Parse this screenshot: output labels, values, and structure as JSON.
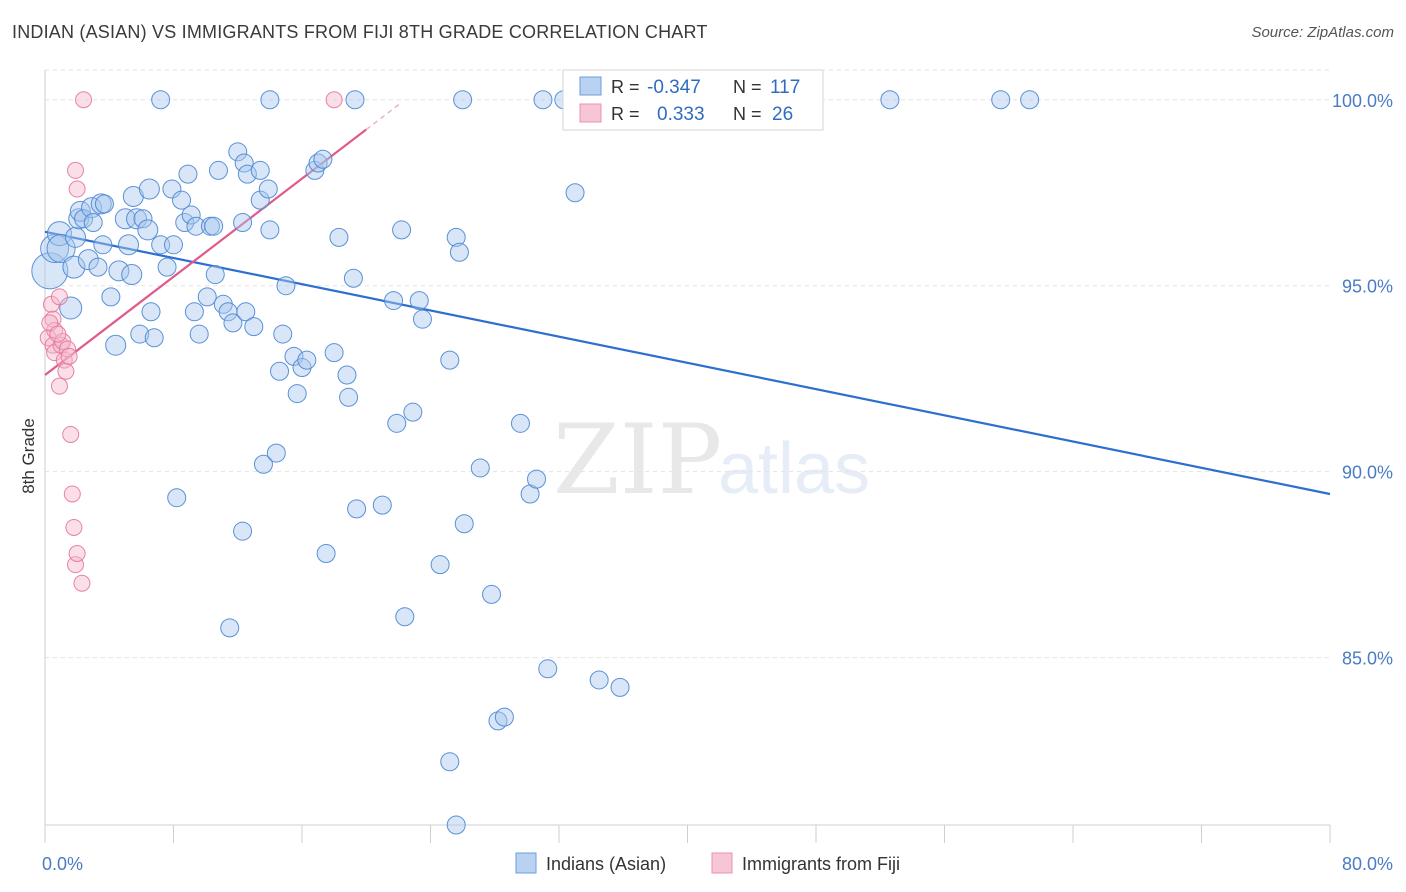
{
  "title": "INDIAN (ASIAN) VS IMMIGRANTS FROM FIJI 8TH GRADE CORRELATION CHART",
  "source": "Source: ZipAtlas.com",
  "watermark": {
    "zip": "ZIP",
    "atlas": "atlas"
  },
  "colors": {
    "blue": "#4a86d4",
    "blue_fill": "#a9c8ee",
    "pink": "#e7769d",
    "pink_fill": "#f5b8cc",
    "axis_text": "#4a7cc4",
    "grid": "#e3e3e3"
  },
  "legend_top": {
    "rows": [
      {
        "r_label": "R =",
        "r_value": "-0.347",
        "n_label": "N =",
        "n_value": "117"
      },
      {
        "r_label": "R =",
        "r_value": "0.333",
        "n_label": "N =",
        "n_value": "26"
      }
    ]
  },
  "legend_bottom": {
    "series1": "Indians (Asian)",
    "series2": "Immigrants from Fiji"
  },
  "chart_data": {
    "type": "scatter",
    "xlabel": "",
    "ylabel": "8th Grade",
    "xlim": [
      0,
      80
    ],
    "ylim": [
      80.5,
      100.8
    ],
    "x_tick_labels": {
      "0": "0.0%",
      "80": "80.0%"
    },
    "y_ticks": [
      85,
      90,
      95,
      100
    ],
    "y_tick_labels": [
      "85.0%",
      "90.0%",
      "95.0%",
      "100.0%"
    ],
    "grid": true,
    "series": [
      {
        "name": "Indians (Asian)",
        "color": "#4a86d4",
        "trend": {
          "x0": 0,
          "y0": 96.45,
          "x1": 80,
          "y1": 89.4
        },
        "points": [
          [
            0.3,
            95.4,
            18
          ],
          [
            0.6,
            96.0,
            14
          ],
          [
            0.9,
            96.4,
            12
          ],
          [
            1.0,
            96.0,
            14
          ],
          [
            1.6,
            94.4,
            11
          ],
          [
            1.8,
            95.5,
            11
          ],
          [
            1.9,
            96.3,
            10
          ],
          [
            2.1,
            96.8,
            10
          ],
          [
            2.2,
            97.0,
            10
          ],
          [
            2.4,
            96.8,
            9
          ],
          [
            2.7,
            95.7,
            10
          ],
          [
            2.9,
            97.1,
            10
          ],
          [
            3.0,
            96.7,
            9
          ],
          [
            3.3,
            95.5,
            9
          ],
          [
            3.5,
            97.2,
            10
          ],
          [
            3.7,
            97.2,
            9
          ],
          [
            4.1,
            94.7,
            9
          ],
          [
            4.4,
            93.4,
            10
          ],
          [
            4.6,
            95.4,
            10
          ],
          [
            5.0,
            96.8,
            10
          ],
          [
            5.2,
            96.1,
            10
          ],
          [
            5.4,
            95.3,
            10
          ],
          [
            5.5,
            97.4,
            10
          ],
          [
            5.7,
            96.8,
            10
          ],
          [
            5.9,
            93.7,
            9
          ],
          [
            6.1,
            96.8,
            9
          ],
          [
            6.4,
            96.5,
            10
          ],
          [
            6.5,
            97.6,
            10
          ],
          [
            6.8,
            93.6,
            9
          ],
          [
            7.2,
            96.1,
            9
          ],
          [
            7.6,
            95.5,
            9
          ],
          [
            7.9,
            97.6,
            9
          ],
          [
            8.0,
            96.1,
            9
          ],
          [
            8.5,
            97.3,
            9
          ],
          [
            8.7,
            96.7,
            9
          ],
          [
            8.9,
            98.0,
            9
          ],
          [
            9.1,
            96.9,
            9
          ],
          [
            9.3,
            94.3,
            9
          ],
          [
            9.4,
            96.6,
            9
          ],
          [
            9.6,
            93.7,
            9
          ],
          [
            10.1,
            94.7,
            9
          ],
          [
            10.3,
            96.6,
            9
          ],
          [
            10.5,
            96.6,
            9
          ],
          [
            10.6,
            95.3,
            9
          ],
          [
            10.8,
            98.1,
            9
          ],
          [
            11.1,
            94.5,
            9
          ],
          [
            11.4,
            94.3,
            9
          ],
          [
            11.7,
            94.0,
            9
          ],
          [
            12.0,
            98.6,
            9
          ],
          [
            12.3,
            96.7,
            9
          ],
          [
            12.4,
            98.3,
            9
          ],
          [
            12.6,
            98.0,
            9
          ],
          [
            12.5,
            94.3,
            9
          ],
          [
            13.0,
            93.9,
            9
          ],
          [
            13.4,
            98.1,
            9
          ],
          [
            13.4,
            97.3,
            9
          ],
          [
            13.6,
            90.2,
            9
          ],
          [
            13.9,
            97.6,
            9
          ],
          [
            14.0,
            96.5,
            9
          ],
          [
            14.4,
            90.5,
            9
          ],
          [
            14.6,
            92.7,
            9
          ],
          [
            14.8,
            93.7,
            9
          ],
          [
            15.0,
            95.0,
            9
          ],
          [
            15.5,
            93.1,
            9
          ],
          [
            15.7,
            92.1,
            9
          ],
          [
            16.0,
            92.8,
            9
          ],
          [
            16.3,
            93.0,
            9
          ],
          [
            16.8,
            98.1,
            9
          ],
          [
            17.0,
            98.3,
            9
          ],
          [
            17.3,
            98.4,
            9
          ],
          [
            17.5,
            87.8,
            9
          ],
          [
            18.0,
            93.2,
            9
          ],
          [
            18.3,
            96.3,
            9
          ],
          [
            18.8,
            92.6,
            9
          ],
          [
            18.9,
            92.0,
            9
          ],
          [
            19.2,
            95.2,
            9
          ],
          [
            19.4,
            89.0,
            9
          ],
          [
            21.0,
            89.1,
            9
          ],
          [
            21.7,
            94.6,
            9
          ],
          [
            21.9,
            91.3,
            9
          ],
          [
            22.2,
            96.5,
            9
          ],
          [
            22.4,
            86.1,
            9
          ],
          [
            22.9,
            91.6,
            9
          ],
          [
            23.3,
            94.6,
            9
          ],
          [
            23.5,
            94.1,
            9
          ],
          [
            24.6,
            87.5,
            9
          ],
          [
            25.2,
            93.0,
            9
          ],
          [
            25.6,
            96.3,
            9
          ],
          [
            25.8,
            95.9,
            9
          ],
          [
            26.1,
            88.6,
            9
          ],
          [
            27.1,
            90.1,
            9
          ],
          [
            27.8,
            86.7,
            9
          ],
          [
            28.2,
            83.3,
            9
          ],
          [
            28.6,
            83.4,
            9
          ],
          [
            29.6,
            91.3,
            9
          ],
          [
            30.2,
            89.4,
            9
          ],
          [
            30.6,
            89.8,
            9
          ],
          [
            31.3,
            84.7,
            9
          ],
          [
            33.0,
            97.5,
            9
          ],
          [
            34.5,
            84.4,
            9
          ],
          [
            35.8,
            84.2,
            9
          ],
          [
            25.6,
            80.5,
            9
          ],
          [
            25.2,
            82.2,
            9
          ],
          [
            7.2,
            100.0,
            9
          ],
          [
            14.0,
            100.0,
            9
          ],
          [
            19.3,
            100.0,
            9
          ],
          [
            26.0,
            100.0,
            9
          ],
          [
            31.0,
            100.0,
            9
          ],
          [
            32.3,
            100.0,
            9
          ],
          [
            52.6,
            100.0,
            9
          ],
          [
            59.5,
            100.0,
            9
          ],
          [
            61.3,
            100.0,
            9
          ],
          [
            8.2,
            89.3,
            9
          ],
          [
            11.5,
            85.8,
            9
          ],
          [
            12.3,
            88.4,
            9
          ],
          [
            6.6,
            94.3,
            9
          ],
          [
            3.6,
            96.1,
            9
          ]
        ]
      },
      {
        "name": "Immigrants from Fiji",
        "color": "#e7769d",
        "trend": {
          "x0": 0,
          "y0": 92.6,
          "x1": 20,
          "y1": 99.2
        },
        "points": [
          [
            0.2,
            93.6
          ],
          [
            0.4,
            94.5
          ],
          [
            0.5,
            93.4
          ],
          [
            0.5,
            94.1
          ],
          [
            0.6,
            93.8
          ],
          [
            0.6,
            93.2
          ],
          [
            0.9,
            94.7
          ],
          [
            0.9,
            92.3
          ],
          [
            1.0,
            93.4
          ],
          [
            1.1,
            93.5
          ],
          [
            1.2,
            93.0
          ],
          [
            1.3,
            92.7
          ],
          [
            1.4,
            93.3
          ],
          [
            1.5,
            93.1
          ],
          [
            1.6,
            91.0
          ],
          [
            1.7,
            89.4
          ],
          [
            1.8,
            88.5
          ],
          [
            1.9,
            87.5
          ],
          [
            2.0,
            87.8
          ],
          [
            2.3,
            87.0
          ],
          [
            1.9,
            98.1
          ],
          [
            2.0,
            97.6
          ],
          [
            2.4,
            100.0
          ],
          [
            18.0,
            100.0
          ],
          [
            0.3,
            94.0
          ],
          [
            0.8,
            93.7
          ]
        ]
      }
    ]
  }
}
